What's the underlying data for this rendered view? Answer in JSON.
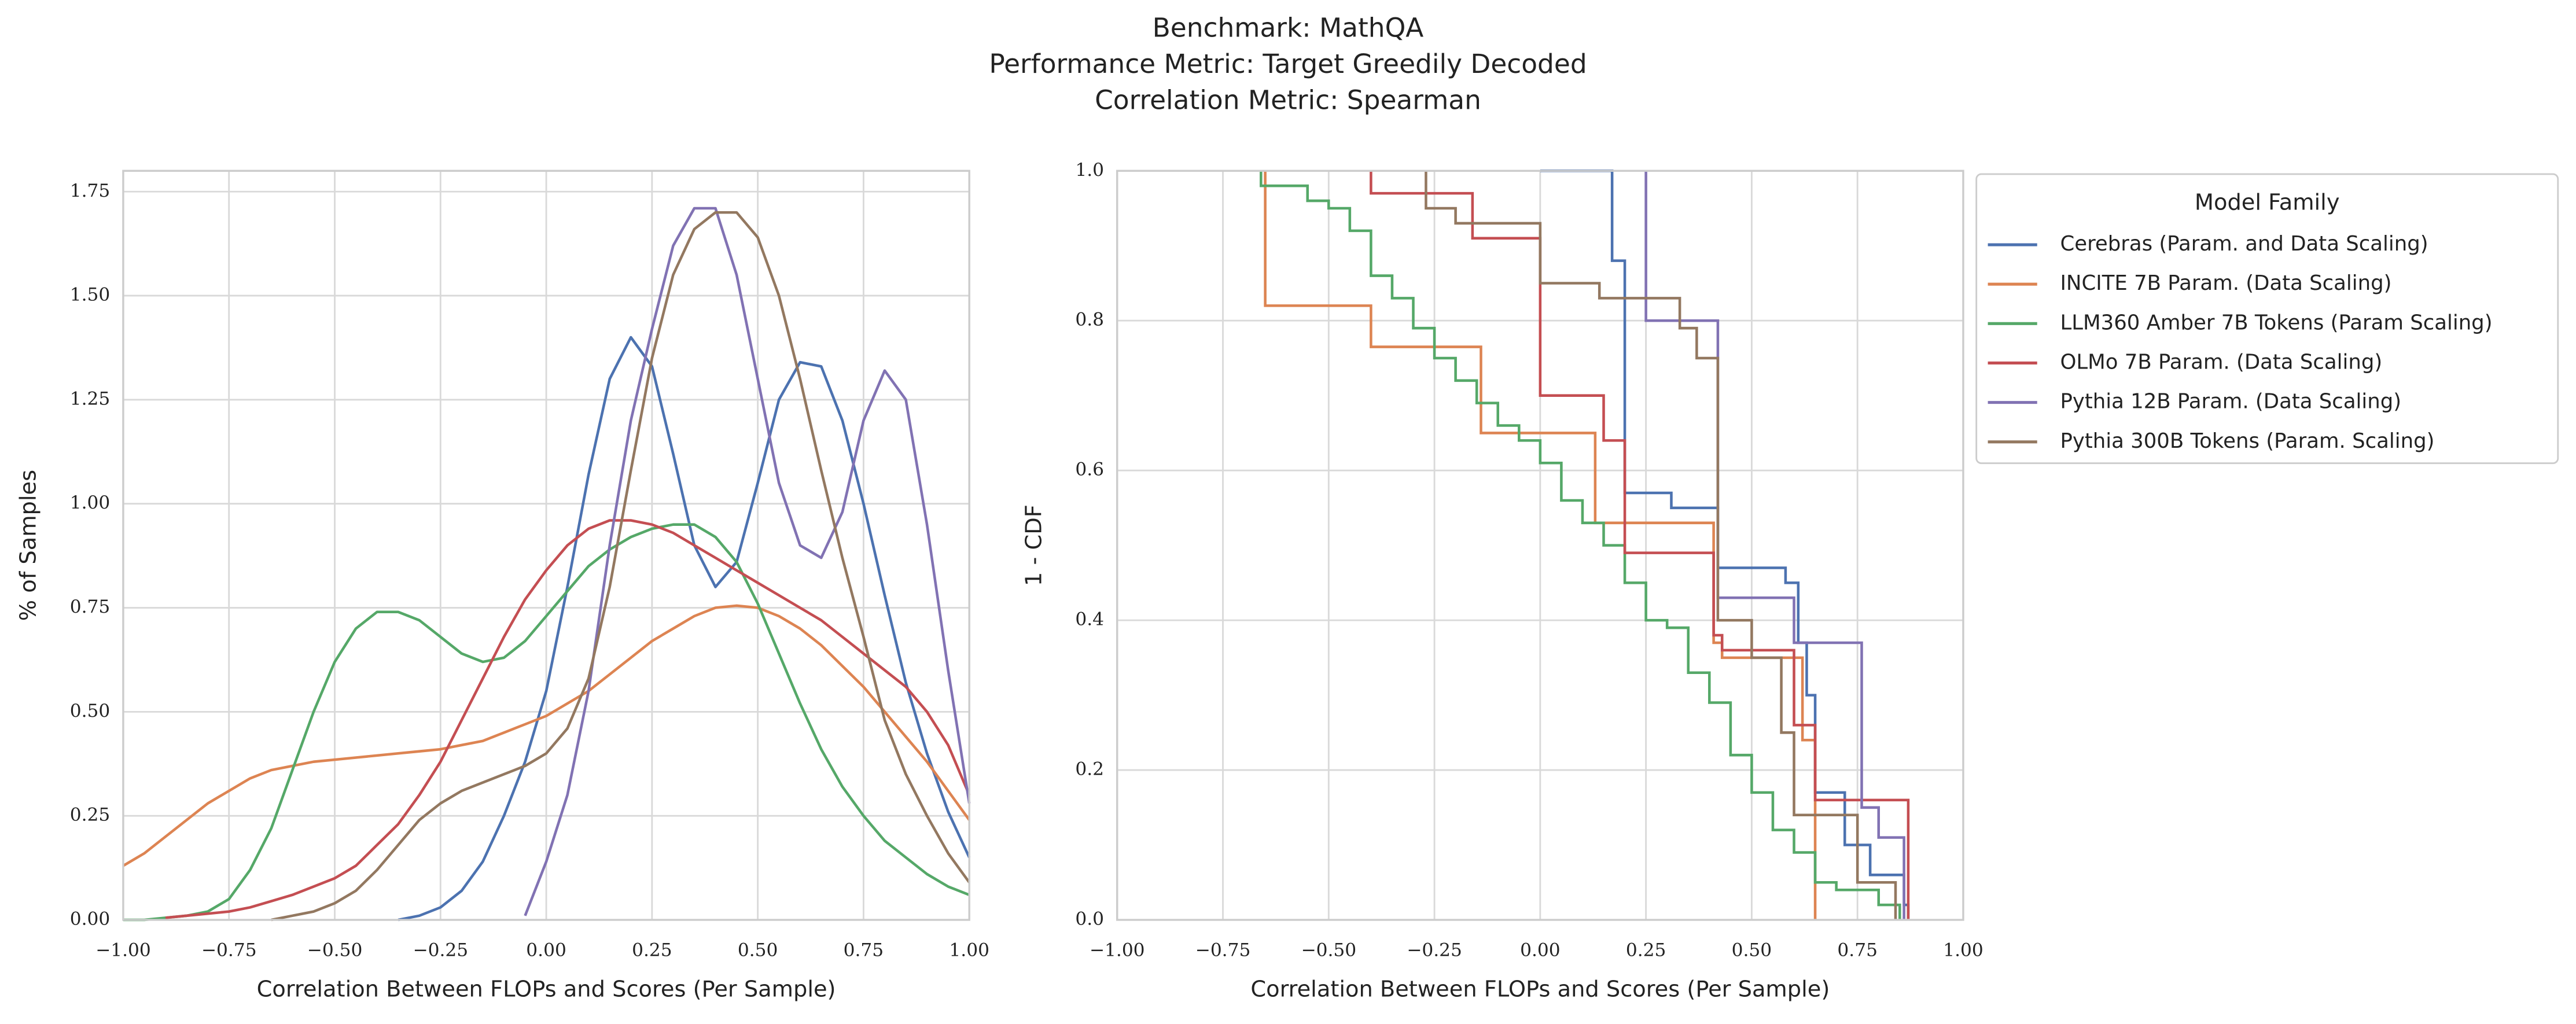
{
  "suptitle": [
    "Benchmark: MathQA",
    "Performance Metric: Target Greedily Decoded",
    "Correlation Metric: Spearman"
  ],
  "chart_data": [
    {
      "type": "line",
      "xlabel": "Correlation Between FLOPs and Scores (Per Sample)",
      "ylabel": "% of Samples",
      "x": [
        -1,
        -0.95,
        -0.9,
        -0.85,
        -0.8,
        -0.75,
        -0.7,
        -0.65,
        -0.6,
        -0.55,
        -0.5,
        -0.45,
        -0.4,
        -0.35,
        -0.3,
        -0.25,
        -0.2,
        -0.15,
        -0.1,
        -0.05,
        0,
        0.05,
        0.1,
        0.15,
        0.2,
        0.25,
        0.3,
        0.35,
        0.4,
        0.45,
        0.5,
        0.55,
        0.6,
        0.65,
        0.7,
        0.75,
        0.8,
        0.85,
        0.9,
        0.95,
        1
      ],
      "series": [
        {
          "color": "#4c72b0",
          "values": [
            null,
            null,
            null,
            null,
            null,
            null,
            null,
            null,
            null,
            null,
            null,
            null,
            null,
            0,
            0.01,
            0.03,
            0.07,
            0.14,
            0.25,
            0.38,
            0.55,
            0.8,
            1.07,
            1.3,
            1.4,
            1.33,
            1.12,
            0.9,
            0.8,
            0.86,
            1.05,
            1.25,
            1.34,
            1.33,
            1.2,
            1.0,
            0.78,
            0.57,
            0.4,
            0.26,
            0.15
          ]
        },
        {
          "color": "#dd8452",
          "values": [
            0.13,
            0.16,
            0.2,
            0.24,
            0.28,
            0.31,
            0.34,
            0.36,
            0.37,
            0.38,
            0.385,
            0.39,
            0.395,
            0.4,
            0.405,
            0.41,
            0.42,
            0.43,
            0.45,
            0.47,
            0.49,
            0.52,
            0.55,
            0.59,
            0.63,
            0.67,
            0.7,
            0.73,
            0.75,
            0.755,
            0.75,
            0.73,
            0.7,
            0.66,
            0.61,
            0.56,
            0.5,
            0.44,
            0.38,
            0.31,
            0.24
          ]
        },
        {
          "color": "#55a868",
          "values": [
            0,
            0,
            0.005,
            0.01,
            0.02,
            0.05,
            0.12,
            0.22,
            0.36,
            0.5,
            0.62,
            0.7,
            0.74,
            0.74,
            0.72,
            0.68,
            0.64,
            0.62,
            0.63,
            0.67,
            0.73,
            0.79,
            0.85,
            0.89,
            0.92,
            0.94,
            0.95,
            0.95,
            0.92,
            0.86,
            0.76,
            0.64,
            0.52,
            0.41,
            0.32,
            0.25,
            0.19,
            0.15,
            0.11,
            0.08,
            0.06
          ]
        },
        {
          "color": "#c44e52",
          "values": [
            null,
            null,
            0.005,
            0.01,
            0.015,
            0.02,
            0.03,
            0.045,
            0.06,
            0.08,
            0.1,
            0.13,
            0.18,
            0.23,
            0.3,
            0.38,
            0.48,
            0.58,
            0.68,
            0.77,
            0.84,
            0.9,
            0.94,
            0.96,
            0.96,
            0.95,
            0.93,
            0.9,
            0.87,
            0.84,
            0.81,
            0.78,
            0.75,
            0.72,
            0.68,
            0.64,
            0.6,
            0.56,
            0.5,
            0.42,
            0.3
          ]
        },
        {
          "color": "#8172b3",
          "values": [
            null,
            null,
            null,
            null,
            null,
            null,
            null,
            null,
            null,
            null,
            null,
            null,
            null,
            null,
            null,
            null,
            null,
            null,
            null,
            0.01,
            0.14,
            0.3,
            0.55,
            0.9,
            1.2,
            1.42,
            1.62,
            1.71,
            1.71,
            1.55,
            1.3,
            1.05,
            0.9,
            0.87,
            0.98,
            1.2,
            1.32,
            1.25,
            0.95,
            0.6,
            0.28
          ]
        },
        {
          "color": "#937860",
          "values": [
            null,
            null,
            null,
            null,
            null,
            null,
            null,
            0,
            0.01,
            0.02,
            0.04,
            0.07,
            0.12,
            0.18,
            0.24,
            0.28,
            0.31,
            0.33,
            0.35,
            0.37,
            0.4,
            0.46,
            0.58,
            0.8,
            1.08,
            1.35,
            1.55,
            1.66,
            1.7,
            1.7,
            1.64,
            1.5,
            1.3,
            1.08,
            0.87,
            0.68,
            0.48,
            0.35,
            0.25,
            0.16,
            0.09
          ]
        }
      ],
      "xlim": [
        -1,
        1
      ],
      "ylim": [
        0,
        1.8
      ],
      "xticks": [
        {
          "value": -1,
          "label": "−1.00"
        },
        {
          "value": -0.75,
          "label": "−0.75"
        },
        {
          "value": -0.5,
          "label": "−0.50"
        },
        {
          "value": -0.25,
          "label": "−0.25"
        },
        {
          "value": 0,
          "label": "0.00"
        },
        0.25,
        {
          "value": 0.5,
          "label": "0.50"
        },
        0.75,
        {
          "value": 1,
          "label": "1.00"
        }
      ],
      "yticks": [
        {
          "value": 0,
          "label": "0.00"
        },
        0.25,
        {
          "value": 0.5,
          "label": "0.50"
        },
        0.75,
        {
          "value": 1,
          "label": "1.00"
        },
        1.25,
        {
          "value": 1.5,
          "label": "1.50"
        },
        1.75
      ],
      "grid": true
    },
    {
      "type": "step",
      "xlabel": "Correlation Between FLOPs and Scores (Per Sample)",
      "ylabel": "1 - CDF",
      "legend_title": "Model Family",
      "legend": "outside right",
      "series": [
        {
          "name": "Cerebras (Param. and Data Scaling)",
          "color": "#4c72b0",
          "x": [
            0.0,
            0.17,
            0.2,
            0.31,
            0.42,
            0.58,
            0.61,
            0.63,
            0.65,
            0.72,
            0.78,
            0.86,
            0.87
          ],
          "values": [
            1.0,
            0.88,
            0.57,
            0.55,
            0.47,
            0.45,
            0.37,
            0.3,
            0.17,
            0.1,
            0.06,
            0.02,
            0
          ]
        },
        {
          "name": "INCITE 7B Param. (Data Scaling)",
          "color": "#dd8452",
          "x": [
            -0.65,
            -0.4,
            -0.14,
            0.13,
            0.41,
            0.43,
            0.62,
            0.65
          ],
          "values": [
            0.82,
            0.765,
            0.65,
            0.53,
            0.37,
            0.35,
            0.24,
            0
          ]
        },
        {
          "name": "LLM360 Amber 7B Tokens (Param Scaling)",
          "color": "#55a868",
          "x": [
            -0.66,
            -0.55,
            -0.5,
            -0.45,
            -0.4,
            -0.35,
            -0.3,
            -0.25,
            -0.2,
            -0.15,
            -0.1,
            -0.05,
            0,
            0.05,
            0.1,
            0.15,
            0.2,
            0.25,
            0.3,
            0.35,
            0.4,
            0.45,
            0.5,
            0.55,
            0.6,
            0.65,
            0.7,
            0.8,
            0.85
          ],
          "values": [
            0.98,
            0.96,
            0.95,
            0.92,
            0.86,
            0.83,
            0.79,
            0.75,
            0.72,
            0.69,
            0.66,
            0.64,
            0.61,
            0.56,
            0.53,
            0.5,
            0.45,
            0.4,
            0.39,
            0.33,
            0.29,
            0.22,
            0.17,
            0.12,
            0.09,
            0.05,
            0.04,
            0.02,
            0
          ]
        },
        {
          "name": "OLMo 7B Param. (Data Scaling)",
          "color": "#c44e52",
          "x": [
            -0.4,
            -0.16,
            0,
            0.15,
            0.2,
            0.41,
            0.43,
            0.6,
            0.65,
            0.87
          ],
          "values": [
            0.97,
            0.91,
            0.7,
            0.64,
            0.49,
            0.38,
            0.36,
            0.26,
            0.16,
            0
          ]
        },
        {
          "name": "Pythia 12B Param. (Data Scaling)",
          "color": "#8172b3",
          "x": [
            0.25,
            0.42,
            0.6,
            0.76,
            0.8,
            0.86
          ],
          "values": [
            0.8,
            0.43,
            0.37,
            0.15,
            0.11,
            0
          ]
        },
        {
          "name": "Pythia 300B Tokens (Param. Scaling)",
          "color": "#937860",
          "x": [
            -0.27,
            -0.2,
            0,
            0.14,
            0.33,
            0.37,
            0.42,
            0.5,
            0.57,
            0.6,
            0.75,
            0.84
          ],
          "values": [
            0.95,
            0.93,
            0.85,
            0.83,
            0.79,
            0.75,
            0.4,
            0.35,
            0.25,
            0.14,
            0.05,
            0
          ]
        }
      ],
      "xlim": [
        -1,
        1
      ],
      "ylim": [
        0,
        1
      ],
      "xticks": [
        {
          "value": -1,
          "label": "−1.00"
        },
        {
          "value": -0.75,
          "label": "−0.75"
        },
        {
          "value": -0.5,
          "label": "−0.50"
        },
        {
          "value": -0.25,
          "label": "−0.25"
        },
        {
          "value": 0,
          "label": "0.00"
        },
        0.25,
        {
          "value": 0.5,
          "label": "0.50"
        },
        0.75,
        {
          "value": 1,
          "label": "1.00"
        }
      ],
      "yticks": [
        {
          "value": 0,
          "label": "0.0"
        },
        0.2,
        0.4,
        0.6,
        0.8,
        {
          "value": 1,
          "label": "1.0"
        }
      ],
      "grid": true
    }
  ]
}
